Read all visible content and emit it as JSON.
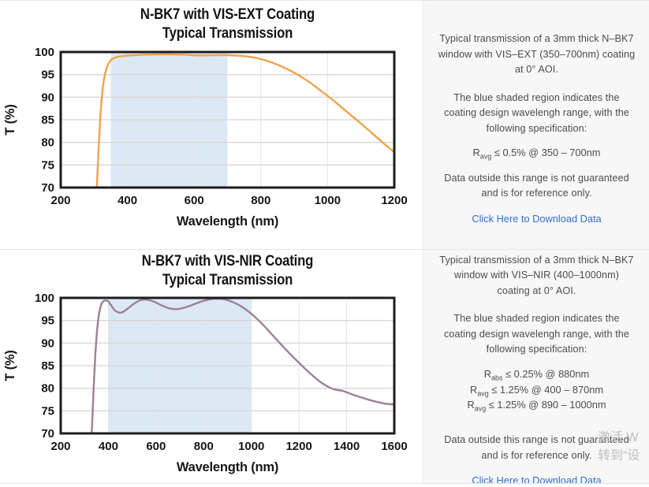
{
  "theme": {
    "panel_bg": "#f7f7f7",
    "border_color": "#e4e4e4",
    "link_color": "#2e6fd0",
    "shade_color": "#dce9f4",
    "vis_ext_line_color": "#f0a24c",
    "vis_nir_line_color": "#9d7f99"
  },
  "rows": [
    {
      "panel": {
        "p1": "Typical transmission of a 3mm thick N–BK7 window with VIS–EXT (350–700nm) coating at 0° AOI.",
        "p2": "The blue shaded region indicates the coating design wavelengh range, with the following specification:",
        "specs": [
          {
            "base": "R",
            "sub": "avg",
            "rest": " ≤ 0.5% @ 350 – 700nm"
          }
        ],
        "p3": "Data outside this range is not guaranteed and is for reference only.",
        "link": "Click Here to Download Data"
      }
    },
    {
      "panel": {
        "p1": "Typical transmission of a 3mm thick N–BK7 window with VIS–NIR (400–1000nm) coating at 0° AOI.",
        "p2": "The blue shaded region indicates the coating design wavelengh range, with the following specification:",
        "specs": [
          {
            "base": "R",
            "sub": "abs",
            "rest": " ≤ 0.25% @ 880nm"
          },
          {
            "base": "R",
            "sub": "avg",
            "rest": " ≤ 1.25% @ 400 – 870nm"
          },
          {
            "base": "R",
            "sub": "avg",
            "rest": " ≤ 1.25% @ 890 – 1000nm"
          }
        ],
        "p3": "Data outside this range is not guaranteed and is for reference only.",
        "link": "Click Here to Download Data"
      }
    }
  ],
  "watermark": {
    "line1": "激活 W",
    "line2": "转到“设"
  },
  "chart_data": [
    {
      "type": "line",
      "title": "N-BK7 with VIS-EXT Coating",
      "subtitle": "Typical Transmission",
      "xlabel": "Wavelength (nm)",
      "ylabel": "T (%)",
      "xlim": [
        200,
        1200
      ],
      "ylim": [
        70,
        100
      ],
      "xticks": [
        200,
        400,
        600,
        800,
        1000,
        1200
      ],
      "yticks": [
        70,
        75,
        80,
        85,
        90,
        95,
        100
      ],
      "grid": true,
      "legend": "none",
      "shaded_region": {
        "x0": 350,
        "x1": 700,
        "label": "coating design wavelength range"
      },
      "shade_color": "#dce9f4",
      "line_color": "#f0a24c",
      "series": [
        {
          "name": "N-BK7 with VIS-EXT coating transmission",
          "x": [
            308,
            312,
            316,
            321,
            327,
            334,
            342,
            352,
            365,
            385,
            420,
            470,
            520,
            570,
            620,
            670,
            700,
            730,
            760,
            790,
            820,
            850,
            880,
            910,
            940,
            970,
            1000,
            1040,
            1080,
            1120,
            1160,
            1200
          ],
          "y": [
            70,
            76,
            82,
            88,
            92.5,
            95.5,
            97.3,
            98.3,
            98.8,
            99.1,
            99.3,
            99.45,
            99.5,
            99.4,
            99.25,
            99.3,
            99.3,
            99.2,
            99.0,
            98.6,
            98.0,
            97.2,
            96.2,
            95.0,
            93.6,
            92.0,
            90.3,
            87.9,
            85.4,
            82.9,
            80.3,
            77.8
          ]
        }
      ]
    },
    {
      "type": "line",
      "title": "N-BK7 with VIS-NIR Coating",
      "subtitle": "Typical Transmission",
      "xlabel": "Wavelength (nm)",
      "ylabel": "T (%)",
      "xlim": [
        200,
        1600
      ],
      "ylim": [
        70,
        100
      ],
      "xticks": [
        200,
        400,
        600,
        800,
        1000,
        1200,
        1400,
        1600
      ],
      "yticks": [
        70,
        75,
        80,
        85,
        90,
        95,
        100
      ],
      "grid": true,
      "legend": "none",
      "shaded_region": {
        "x0": 400,
        "x1": 1000,
        "label": "coating design wavelength range"
      },
      "shade_color": "#dce9f4",
      "line_color": "#9d7f99",
      "series": [
        {
          "name": "N-BK7 with VIS-NIR coating transmission",
          "x": [
            330,
            335,
            340,
            346,
            353,
            361,
            370,
            380,
            392,
            400,
            412,
            428,
            448,
            465,
            485,
            510,
            535,
            560,
            590,
            625,
            655,
            685,
            715,
            750,
            790,
            830,
            865,
            895,
            925,
            955,
            985,
            1015,
            1050,
            1090,
            1130,
            1170,
            1210,
            1255,
            1300,
            1345,
            1385,
            1420,
            1460,
            1510,
            1560,
            1600
          ],
          "y": [
            70,
            76,
            82,
            88,
            93,
            96.5,
            98.5,
            99.3,
            99.4,
            99.2,
            98.3,
            97.2,
            96.7,
            97.0,
            97.8,
            98.8,
            99.5,
            99.6,
            99.2,
            98.3,
            97.7,
            97.5,
            97.8,
            98.4,
            99.2,
            99.7,
            99.8,
            99.6,
            99.0,
            98.2,
            97.1,
            95.8,
            94.0,
            91.7,
            89.4,
            87.2,
            85.1,
            82.9,
            81.0,
            79.8,
            79.4,
            78.7,
            78.0,
            77.2,
            76.6,
            76.4
          ]
        }
      ]
    }
  ]
}
